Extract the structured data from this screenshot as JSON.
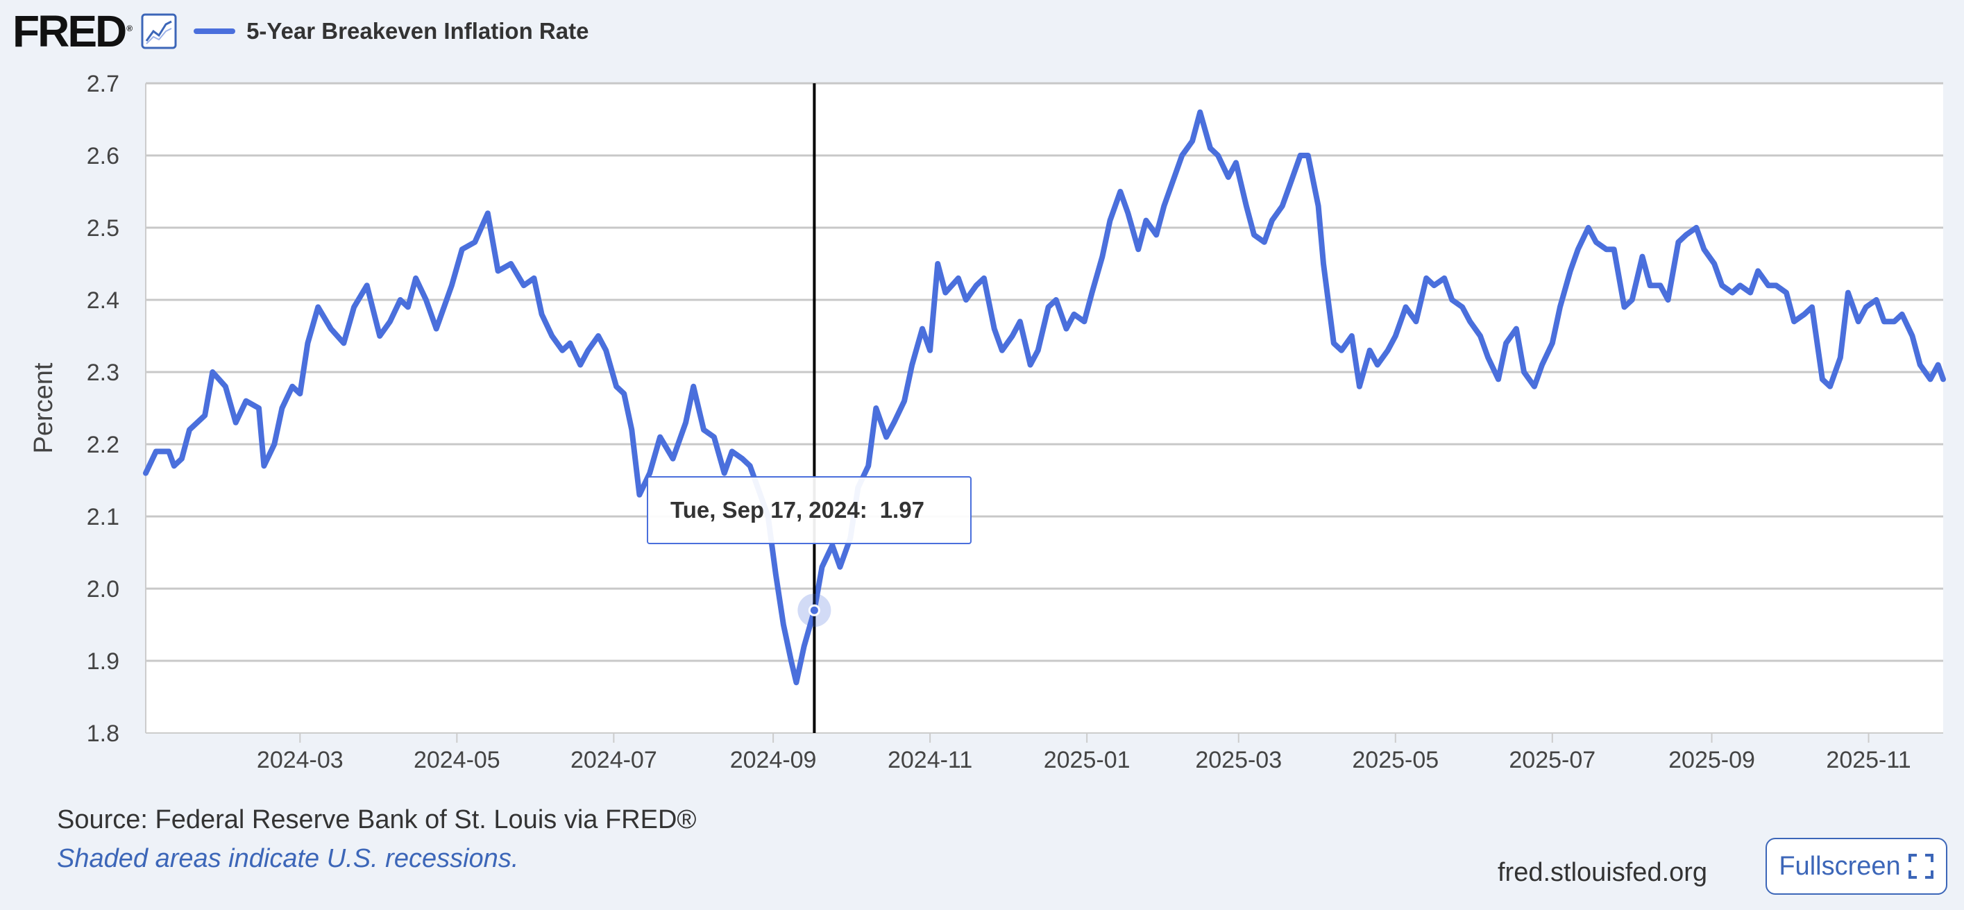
{
  "header": {
    "logo_text": "FRED",
    "logo_mark": "®",
    "graph_icon": "line-graph-icon",
    "series_label": "5-Year Breakeven Inflation Rate",
    "series_color": "#4a6fdc"
  },
  "tooltip": {
    "date": "Tue, Sep 17, 2024:",
    "value": "1.97"
  },
  "footer": {
    "source": "Source: Federal Reserve Bank of St. Louis via FRED®",
    "note": "Shaded areas indicate U.S. recessions.",
    "site": "fred.stlouisfed.org",
    "fullscreen_label": "Fullscreen",
    "fullscreen_icon": "expand-icon"
  },
  "chart_data": {
    "type": "line",
    "title": "",
    "xlabel": "",
    "ylabel": "Percent",
    "ylim": [
      1.8,
      2.7
    ],
    "xlim": [
      "2024-01-01",
      "2025-11-30"
    ],
    "grid": true,
    "legend_position": "top-left",
    "y_ticks": [
      "1.8",
      "1.9",
      "2.0",
      "2.1",
      "2.2",
      "2.3",
      "2.4",
      "2.5",
      "2.6",
      "2.7"
    ],
    "x_ticks": [
      "2024-03",
      "2024-05",
      "2024-07",
      "2024-09",
      "2024-11",
      "2025-01",
      "2025-03",
      "2025-05",
      "2025-07",
      "2025-09",
      "2025-11"
    ],
    "crosshair_date": "2024-09-17",
    "highlight_point": {
      "x": "2024-09-17",
      "y": 1.97
    },
    "series": [
      {
        "name": "5-Year Breakeven Inflation Rate",
        "color": "#4a6fdc",
        "points": [
          [
            "2024-01-01",
            2.16
          ],
          [
            "2024-01-05",
            2.19
          ],
          [
            "2024-01-10",
            2.19
          ],
          [
            "2024-01-12",
            2.17
          ],
          [
            "2024-01-15",
            2.18
          ],
          [
            "2024-01-18",
            2.22
          ],
          [
            "2024-01-24",
            2.24
          ],
          [
            "2024-01-27",
            2.3
          ],
          [
            "2024-02-01",
            2.28
          ],
          [
            "2024-02-05",
            2.23
          ],
          [
            "2024-02-09",
            2.26
          ],
          [
            "2024-02-14",
            2.25
          ],
          [
            "2024-02-16",
            2.17
          ],
          [
            "2024-02-20",
            2.2
          ],
          [
            "2024-02-23",
            2.25
          ],
          [
            "2024-02-27",
            2.28
          ],
          [
            "2024-03-01",
            2.27
          ],
          [
            "2024-03-04",
            2.34
          ],
          [
            "2024-03-08",
            2.39
          ],
          [
            "2024-03-13",
            2.36
          ],
          [
            "2024-03-18",
            2.34
          ],
          [
            "2024-03-22",
            2.39
          ],
          [
            "2024-03-27",
            2.42
          ],
          [
            "2024-04-01",
            2.35
          ],
          [
            "2024-04-05",
            2.37
          ],
          [
            "2024-04-09",
            2.4
          ],
          [
            "2024-04-12",
            2.39
          ],
          [
            "2024-04-15",
            2.43
          ],
          [
            "2024-04-19",
            2.4
          ],
          [
            "2024-04-23",
            2.36
          ],
          [
            "2024-04-29",
            2.42
          ],
          [
            "2024-05-03",
            2.47
          ],
          [
            "2024-05-08",
            2.48
          ],
          [
            "2024-05-13",
            2.52
          ],
          [
            "2024-05-17",
            2.44
          ],
          [
            "2024-05-22",
            2.45
          ],
          [
            "2024-05-27",
            2.42
          ],
          [
            "2024-05-31",
            2.43
          ],
          [
            "2024-06-03",
            2.38
          ],
          [
            "2024-06-07",
            2.35
          ],
          [
            "2024-06-11",
            2.33
          ],
          [
            "2024-06-14",
            2.34
          ],
          [
            "2024-06-18",
            2.31
          ],
          [
            "2024-06-21",
            2.33
          ],
          [
            "2024-06-25",
            2.35
          ],
          [
            "2024-06-28",
            2.33
          ],
          [
            "2024-07-02",
            2.28
          ],
          [
            "2024-07-05",
            2.27
          ],
          [
            "2024-07-08",
            2.22
          ],
          [
            "2024-07-11",
            2.13
          ],
          [
            "2024-07-15",
            2.16
          ],
          [
            "2024-07-19",
            2.21
          ],
          [
            "2024-07-24",
            2.18
          ],
          [
            "2024-07-29",
            2.23
          ],
          [
            "2024-08-01",
            2.28
          ],
          [
            "2024-08-05",
            2.22
          ],
          [
            "2024-08-09",
            2.21
          ],
          [
            "2024-08-13",
            2.16
          ],
          [
            "2024-08-16",
            2.19
          ],
          [
            "2024-08-20",
            2.18
          ],
          [
            "2024-08-23",
            2.17
          ],
          [
            "2024-08-27",
            2.13
          ],
          [
            "2024-08-30",
            2.1
          ],
          [
            "2024-09-02",
            2.02
          ],
          [
            "2024-09-05",
            1.95
          ],
          [
            "2024-09-08",
            1.9
          ],
          [
            "2024-09-10",
            1.87
          ],
          [
            "2024-09-13",
            1.92
          ],
          [
            "2024-09-17",
            1.97
          ],
          [
            "2024-09-20",
            2.03
          ],
          [
            "2024-09-24",
            2.06
          ],
          [
            "2024-09-27",
            2.03
          ],
          [
            "2024-10-01",
            2.07
          ],
          [
            "2024-10-04",
            2.14
          ],
          [
            "2024-10-08",
            2.17
          ],
          [
            "2024-10-11",
            2.25
          ],
          [
            "2024-10-15",
            2.21
          ],
          [
            "2024-10-18",
            2.23
          ],
          [
            "2024-10-22",
            2.26
          ],
          [
            "2024-10-25",
            2.31
          ],
          [
            "2024-10-29",
            2.36
          ],
          [
            "2024-11-01",
            2.33
          ],
          [
            "2024-11-04",
            2.45
          ],
          [
            "2024-11-07",
            2.41
          ],
          [
            "2024-11-12",
            2.43
          ],
          [
            "2024-11-15",
            2.4
          ],
          [
            "2024-11-19",
            2.42
          ],
          [
            "2024-11-22",
            2.43
          ],
          [
            "2024-11-26",
            2.36
          ],
          [
            "2024-11-29",
            2.33
          ],
          [
            "2024-12-03",
            2.35
          ],
          [
            "2024-12-06",
            2.37
          ],
          [
            "2024-12-10",
            2.31
          ],
          [
            "2024-12-13",
            2.33
          ],
          [
            "2024-12-17",
            2.39
          ],
          [
            "2024-12-20",
            2.4
          ],
          [
            "2024-12-24",
            2.36
          ],
          [
            "2024-12-27",
            2.38
          ],
          [
            "2024-12-31",
            2.37
          ],
          [
            "2025-01-03",
            2.41
          ],
          [
            "2025-01-07",
            2.46
          ],
          [
            "2025-01-10",
            2.51
          ],
          [
            "2025-01-14",
            2.55
          ],
          [
            "2025-01-17",
            2.52
          ],
          [
            "2025-01-21",
            2.47
          ],
          [
            "2025-01-24",
            2.51
          ],
          [
            "2025-01-28",
            2.49
          ],
          [
            "2025-01-31",
            2.53
          ],
          [
            "2025-02-04",
            2.57
          ],
          [
            "2025-02-07",
            2.6
          ],
          [
            "2025-02-11",
            2.62
          ],
          [
            "2025-02-14",
            2.66
          ],
          [
            "2025-02-18",
            2.61
          ],
          [
            "2025-02-21",
            2.6
          ],
          [
            "2025-02-25",
            2.57
          ],
          [
            "2025-02-28",
            2.59
          ],
          [
            "2025-03-04",
            2.53
          ],
          [
            "2025-03-07",
            2.49
          ],
          [
            "2025-03-11",
            2.48
          ],
          [
            "2025-03-14",
            2.51
          ],
          [
            "2025-03-18",
            2.53
          ],
          [
            "2025-03-21",
            2.56
          ],
          [
            "2025-03-25",
            2.6
          ],
          [
            "2025-03-28",
            2.6
          ],
          [
            "2025-04-01",
            2.53
          ],
          [
            "2025-04-03",
            2.45
          ],
          [
            "2025-04-07",
            2.34
          ],
          [
            "2025-04-10",
            2.33
          ],
          [
            "2025-04-14",
            2.35
          ],
          [
            "2025-04-17",
            2.28
          ],
          [
            "2025-04-21",
            2.33
          ],
          [
            "2025-04-24",
            2.31
          ],
          [
            "2025-04-28",
            2.33
          ],
          [
            "2025-05-01",
            2.35
          ],
          [
            "2025-05-05",
            2.39
          ],
          [
            "2025-05-09",
            2.37
          ],
          [
            "2025-05-13",
            2.43
          ],
          [
            "2025-05-16",
            2.42
          ],
          [
            "2025-05-20",
            2.43
          ],
          [
            "2025-05-23",
            2.4
          ],
          [
            "2025-05-27",
            2.39
          ],
          [
            "2025-05-30",
            2.37
          ],
          [
            "2025-06-03",
            2.35
          ],
          [
            "2025-06-06",
            2.32
          ],
          [
            "2025-06-10",
            2.29
          ],
          [
            "2025-06-13",
            2.34
          ],
          [
            "2025-06-17",
            2.36
          ],
          [
            "2025-06-20",
            2.3
          ],
          [
            "2025-06-24",
            2.28
          ],
          [
            "2025-06-27",
            2.31
          ],
          [
            "2025-07-01",
            2.34
          ],
          [
            "2025-07-04",
            2.39
          ],
          [
            "2025-07-08",
            2.44
          ],
          [
            "2025-07-11",
            2.47
          ],
          [
            "2025-07-15",
            2.5
          ],
          [
            "2025-07-18",
            2.48
          ],
          [
            "2025-07-22",
            2.47
          ],
          [
            "2025-07-25",
            2.47
          ],
          [
            "2025-07-29",
            2.39
          ],
          [
            "2025-08-01",
            2.4
          ],
          [
            "2025-08-05",
            2.46
          ],
          [
            "2025-08-08",
            2.42
          ],
          [
            "2025-08-12",
            2.42
          ],
          [
            "2025-08-15",
            2.4
          ],
          [
            "2025-08-19",
            2.48
          ],
          [
            "2025-08-22",
            2.49
          ],
          [
            "2025-08-26",
            2.5
          ],
          [
            "2025-08-29",
            2.47
          ],
          [
            "2025-09-02",
            2.45
          ],
          [
            "2025-09-05",
            2.42
          ],
          [
            "2025-09-09",
            2.41
          ],
          [
            "2025-09-12",
            2.42
          ],
          [
            "2025-09-16",
            2.41
          ],
          [
            "2025-09-19",
            2.44
          ],
          [
            "2025-09-23",
            2.42
          ],
          [
            "2025-09-26",
            2.42
          ],
          [
            "2025-09-30",
            2.41
          ],
          [
            "2025-10-03",
            2.37
          ],
          [
            "2025-10-07",
            2.38
          ],
          [
            "2025-10-10",
            2.39
          ],
          [
            "2025-10-14",
            2.29
          ],
          [
            "2025-10-17",
            2.28
          ],
          [
            "2025-10-21",
            2.32
          ],
          [
            "2025-10-24",
            2.41
          ],
          [
            "2025-10-28",
            2.37
          ],
          [
            "2025-10-31",
            2.39
          ],
          [
            "2025-11-04",
            2.4
          ],
          [
            "2025-11-07",
            2.37
          ],
          [
            "2025-11-11",
            2.37
          ],
          [
            "2025-11-14",
            2.38
          ],
          [
            "2025-11-18",
            2.35
          ],
          [
            "2025-11-21",
            2.31
          ],
          [
            "2025-11-25",
            2.29
          ],
          [
            "2025-11-28",
            2.31
          ],
          [
            "2025-11-30",
            2.29
          ]
        ]
      }
    ]
  }
}
